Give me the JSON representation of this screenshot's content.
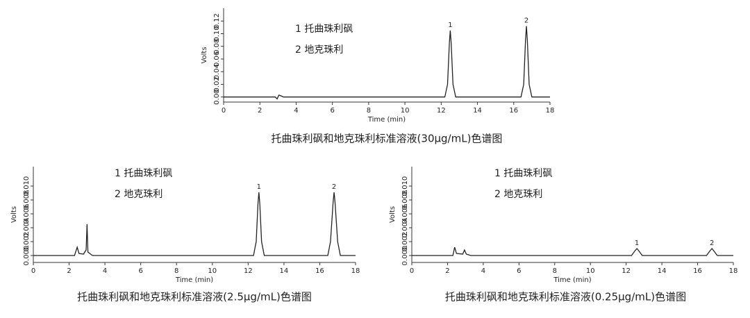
{
  "chart_data": [
    {
      "type": "line",
      "title": "托曲珠利砜和地克珠利标准溶液(30μg/mL)色谱图",
      "x_label": "Time (min)",
      "y_label": "Volts",
      "legend_notes": [
        "1 托曲珠利砜",
        "2 地克珠利"
      ],
      "annotations": [
        {
          "text": "1",
          "x": 12.5,
          "y": 0.105
        },
        {
          "text": "2",
          "x": 16.7,
          "y": 0.112
        }
      ],
      "x": [
        0,
        2.85,
        2.95,
        3.05,
        3.15,
        3.3,
        12.2,
        12.35,
        12.45,
        12.5,
        12.55,
        12.65,
        12.8,
        16.4,
        16.55,
        16.65,
        16.7,
        16.75,
        16.85,
        17.0,
        18
      ],
      "values": [
        0,
        0,
        -0.003,
        0.003,
        0.002,
        0,
        0,
        0.02,
        0.085,
        0.105,
        0.085,
        0.02,
        0,
        0,
        0.02,
        0.09,
        0.112,
        0.09,
        0.02,
        0,
        0
      ],
      "color": "#222222",
      "xlim": [
        0,
        18
      ],
      "xticks": [
        0,
        2,
        4,
        6,
        8,
        10,
        12,
        14,
        16,
        18
      ],
      "ylim": [
        -0.008,
        0.14
      ],
      "yticks": [
        {
          "value": 0,
          "label": "0.00"
        },
        0.02,
        0.04,
        0.06,
        0.08,
        {
          "value": 0.1,
          "label": "0.10"
        },
        0.12
      ]
    },
    {
      "type": "line",
      "title": "托曲珠利砜和地克珠利标准溶液(2.5μg/mL)色谱图",
      "x_label": "Time (min)",
      "y_label": "Volts",
      "legend_notes": [
        "1 托曲珠利砜",
        "2 地克珠利"
      ],
      "annotations": [
        {
          "text": "1",
          "x": 12.6,
          "y": 0.0091
        },
        {
          "text": "2",
          "x": 16.8,
          "y": 0.0091
        }
      ],
      "x": [
        0,
        2.3,
        2.45,
        2.55,
        2.8,
        2.95,
        3.0,
        3.05,
        3.3,
        12.3,
        12.45,
        12.55,
        12.6,
        12.65,
        12.75,
        12.9,
        16.45,
        16.6,
        16.75,
        16.8,
        16.85,
        17.0,
        17.15,
        18
      ],
      "values": [
        0,
        0,
        0.0012,
        0.0003,
        0.0002,
        0.0008,
        0.0045,
        0.0005,
        0,
        0,
        0.002,
        0.0075,
        0.0091,
        0.0075,
        0.002,
        0,
        0,
        0.002,
        0.0078,
        0.0091,
        0.0078,
        0.002,
        0,
        0
      ],
      "color": "#222222",
      "xlim": [
        0,
        18
      ],
      "xticks": [
        0,
        2,
        4,
        6,
        8,
        10,
        12,
        14,
        16,
        18
      ],
      "ylim": [
        -0.001,
        0.0128
      ],
      "yticks": [
        {
          "value": 0,
          "label": "0.000"
        },
        0.002,
        0.004,
        0.006,
        0.008,
        {
          "value": 0.01,
          "label": "0.010"
        }
      ]
    },
    {
      "type": "line",
      "title": "托曲珠利砜和地克珠利标准溶液(0.25μg/mL)色谱图",
      "x_label": "Time (min)",
      "y_label": "Volts",
      "legend_notes": [
        "1 托曲珠利砜",
        "2 地克珠利"
      ],
      "annotations": [
        {
          "text": "1",
          "x": 12.6,
          "y": 0.001
        },
        {
          "text": "2",
          "x": 16.8,
          "y": 0.001
        }
      ],
      "x": [
        0,
        2.3,
        2.4,
        2.5,
        2.85,
        2.95,
        3.05,
        3.3,
        12.3,
        12.5,
        12.6,
        12.7,
        12.9,
        16.5,
        16.7,
        16.8,
        16.9,
        17.1,
        18
      ],
      "values": [
        0,
        0,
        0.0012,
        0.0003,
        0.0002,
        0.0008,
        0.0002,
        0,
        0,
        0.0007,
        0.001,
        0.0007,
        0,
        0,
        0.0007,
        0.001,
        0.0007,
        0,
        0
      ],
      "color": "#222222",
      "xlim": [
        0,
        18
      ],
      "xticks": [
        0,
        2,
        4,
        6,
        8,
        10,
        12,
        14,
        16,
        18
      ],
      "ylim": [
        -0.001,
        0.0128
      ],
      "yticks": [
        {
          "value": 0,
          "label": "0.000"
        },
        0.002,
        0.004,
        0.006,
        0.008,
        {
          "value": 0.01,
          "label": "0.010"
        }
      ]
    }
  ]
}
